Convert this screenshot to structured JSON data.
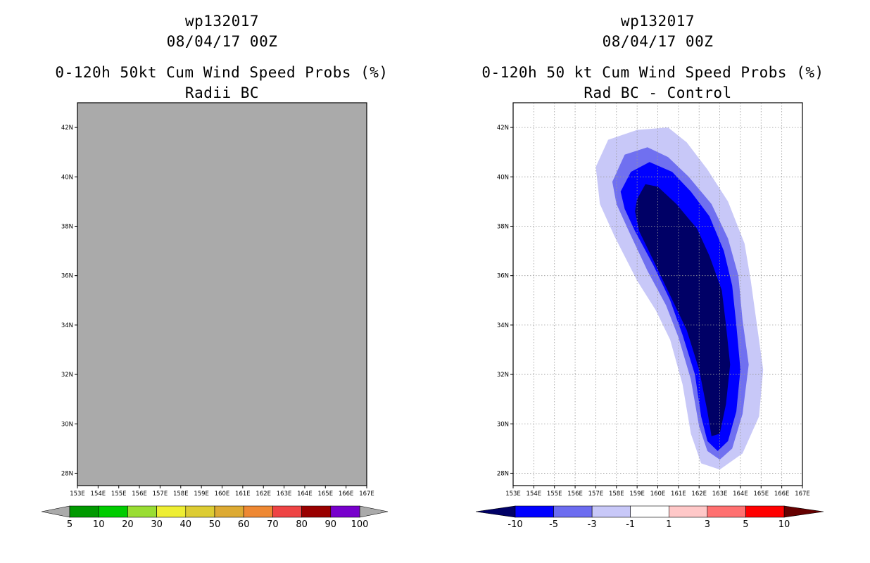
{
  "chart_data": [
    {
      "type": "heatmap",
      "title_lines": [
        "wp132017",
        "08/04/17 00Z",
        "0-120h 50kt Cum Wind Speed Probs (%)",
        "Radii BC"
      ],
      "xticks": [
        "153E",
        "154E",
        "155E",
        "156E",
        "157E",
        "158E",
        "159E",
        "160E",
        "161E",
        "162E",
        "163E",
        "164E",
        "165E",
        "166E",
        "167E"
      ],
      "yticks": [
        "42N",
        "40N",
        "38N",
        "36N",
        "34N",
        "32N",
        "30N",
        "28N"
      ],
      "xlim": [
        153,
        167
      ],
      "ylim": [
        27.5,
        43
      ],
      "field": "uniform no-data (all grey)",
      "fill_color": "#aaaaaa",
      "grid": false,
      "colorbar": {
        "labels": [
          "5",
          "10",
          "20",
          "30",
          "40",
          "50",
          "60",
          "70",
          "80",
          "90",
          "100"
        ],
        "colors": [
          "#009900",
          "#00cc00",
          "#99dd33",
          "#eeee33",
          "#ddcc33",
          "#ddaa33",
          "#ee8833",
          "#ee4444",
          "#990000",
          "#7700cc"
        ],
        "end_color": "#aaaaaa"
      }
    },
    {
      "type": "heatmap",
      "title_lines": [
        "wp132017",
        "08/04/17 00Z",
        "0-120h 50 kt Cum Wind Speed Probs (%)",
        "Rad BC - Control"
      ],
      "xticks": [
        "153E",
        "154E",
        "155E",
        "156E",
        "157E",
        "158E",
        "159E",
        "160E",
        "161E",
        "162E",
        "163E",
        "164E",
        "165E",
        "166E",
        "167E"
      ],
      "yticks": [
        "42N",
        "40N",
        "38N",
        "36N",
        "34N",
        "32N",
        "30N",
        "28N"
      ],
      "xlim": [
        153,
        167
      ],
      "ylim": [
        27.5,
        43
      ],
      "grid": true,
      "contour_levels": [
        {
          "range": "-3 to -1",
          "color": "#c8c8f8",
          "points": [
            [
              157.0,
              40.4
            ],
            [
              157.6,
              41.5
            ],
            [
              159,
              41.9
            ],
            [
              160.5,
              42.0
            ],
            [
              161.4,
              41.4
            ],
            [
              162.4,
              40.3
            ],
            [
              163.4,
              39.0
            ],
            [
              164.2,
              37.3
            ],
            [
              164.5,
              35.8
            ],
            [
              164.8,
              34.0
            ],
            [
              165.1,
              32.2
            ],
            [
              164.9,
              30.3
            ],
            [
              164.1,
              28.8
            ],
            [
              163.0,
              28.15
            ],
            [
              162.1,
              28.4
            ],
            [
              161.6,
              29.6
            ],
            [
              161.2,
              31.6
            ],
            [
              160.6,
              33.4
            ],
            [
              159.9,
              34.6
            ],
            [
              159.0,
              35.8
            ],
            [
              157.9,
              37.6
            ],
            [
              157.2,
              38.9
            ]
          ]
        },
        {
          "range": "-5 to -3",
          "color": "#7070f0",
          "points": [
            [
              157.8,
              39.8
            ],
            [
              158.4,
              40.9
            ],
            [
              159.5,
              41.2
            ],
            [
              160.5,
              40.8
            ],
            [
              161.5,
              40.0
            ],
            [
              162.6,
              38.9
            ],
            [
              163.4,
              37.5
            ],
            [
              163.9,
              36.0
            ],
            [
              164.1,
              34.2
            ],
            [
              164.4,
              32.4
            ],
            [
              164.1,
              30.4
            ],
            [
              163.6,
              29.0
            ],
            [
              163.0,
              28.55
            ],
            [
              162.4,
              28.9
            ],
            [
              162.0,
              29.9
            ],
            [
              161.6,
              31.8
            ],
            [
              161.0,
              33.5
            ],
            [
              160.4,
              34.8
            ],
            [
              159.5,
              36.2
            ],
            [
              158.6,
              37.8
            ],
            [
              158.0,
              38.9
            ]
          ]
        },
        {
          "range": "-10 to -5",
          "color": "#0000ff",
          "points": [
            [
              158.2,
              39.4
            ],
            [
              158.7,
              40.2
            ],
            [
              159.6,
              40.6
            ],
            [
              160.7,
              40.2
            ],
            [
              161.6,
              39.4
            ],
            [
              162.5,
              38.4
            ],
            [
              163.2,
              37.0
            ],
            [
              163.6,
              35.6
            ],
            [
              163.8,
              34.0
            ],
            [
              164.0,
              32.2
            ],
            [
              163.8,
              30.5
            ],
            [
              163.4,
              29.3
            ],
            [
              162.9,
              28.9
            ],
            [
              162.4,
              29.3
            ],
            [
              162.1,
              30.3
            ],
            [
              161.8,
              32.0
            ],
            [
              161.2,
              33.6
            ],
            [
              160.6,
              35.0
            ],
            [
              159.8,
              36.4
            ],
            [
              158.9,
              37.8
            ],
            [
              158.4,
              38.7
            ]
          ]
        },
        {
          "range": "< -10",
          "color": "#000066",
          "points": [
            [
              159.0,
              39.1
            ],
            [
              159.4,
              39.7
            ],
            [
              160.0,
              39.6
            ],
            [
              160.9,
              38.9
            ],
            [
              161.9,
              37.9
            ],
            [
              162.5,
              36.8
            ],
            [
              163.1,
              35.4
            ],
            [
              163.3,
              34.0
            ],
            [
              163.5,
              32.4
            ],
            [
              163.3,
              30.8
            ],
            [
              163.0,
              29.6
            ],
            [
              162.6,
              29.5
            ],
            [
              162.4,
              30.5
            ],
            [
              162.0,
              32.2
            ],
            [
              161.4,
              33.8
            ],
            [
              160.6,
              35.2
            ],
            [
              159.8,
              36.6
            ],
            [
              159.1,
              37.8
            ],
            [
              158.9,
              38.6
            ]
          ]
        }
      ],
      "colorbar": {
        "labels": [
          "-10",
          "-5",
          "-3",
          "-1",
          "1",
          "3",
          "5",
          "10"
        ],
        "colors": [
          "#0000ff",
          "#6c6cf0",
          "#c8c8f8",
          "#ffffff",
          "#ffc8c8",
          "#ff7070",
          "#ff0000"
        ],
        "low_end_color": "#000066",
        "high_end_color": "#660000"
      }
    }
  ]
}
